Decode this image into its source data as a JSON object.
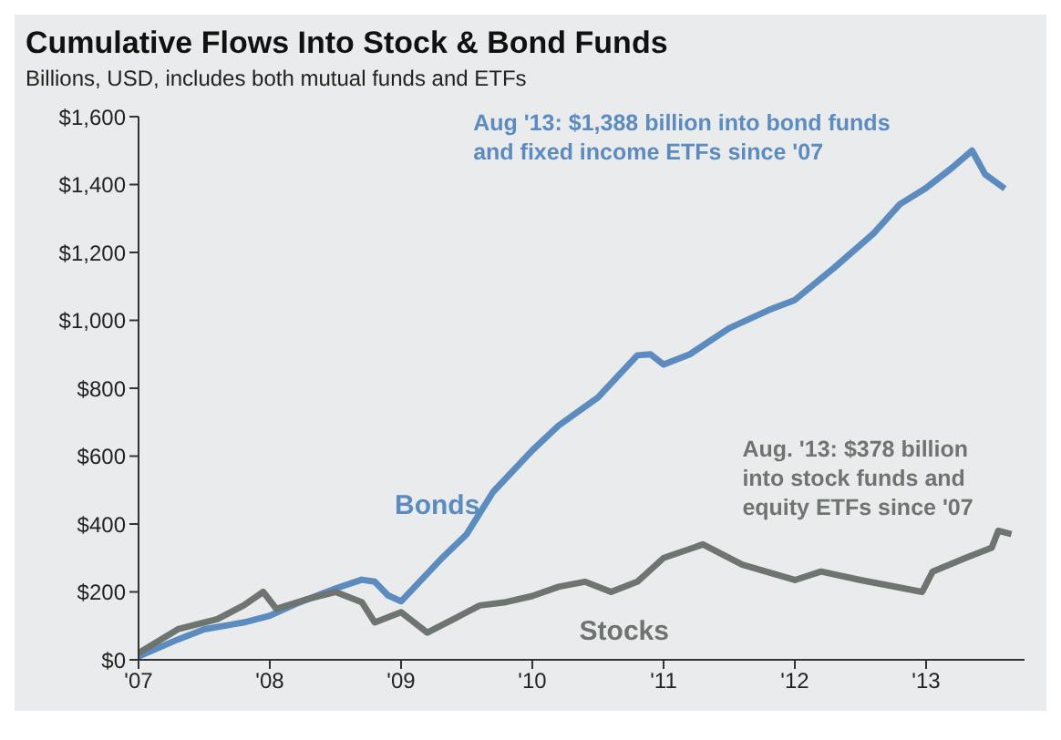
{
  "chart_data": {
    "type": "line",
    "title": "Cumulative Flows Into Stock & Bond Funds",
    "subtitle": "Billions, USD, includes both mutual funds and ETFs",
    "xlim": [
      2007,
      2013.75
    ],
    "xticks": [
      {
        "value": 2007,
        "label": "'07"
      },
      {
        "value": 2008,
        "label": "'08"
      },
      {
        "value": 2009,
        "label": "'09"
      },
      {
        "value": 2010,
        "label": "'10"
      },
      {
        "value": 2011,
        "label": "'11"
      },
      {
        "value": 2012,
        "label": "'12"
      },
      {
        "value": 2013,
        "label": "'13"
      }
    ],
    "ylim": [
      0,
      1600
    ],
    "yticks": [
      {
        "value": 0,
        "label": "$0"
      },
      {
        "value": 200,
        "label": "$200"
      },
      {
        "value": 400,
        "label": "$400"
      },
      {
        "value": 600,
        "label": "$600"
      },
      {
        "value": 800,
        "label": "$800"
      },
      {
        "value": 1000,
        "label": "$1,000"
      },
      {
        "value": 1200,
        "label": "$1,200"
      },
      {
        "value": 1400,
        "label": "$1,400"
      },
      {
        "value": 1600,
        "label": "$1,600"
      }
    ],
    "grid": false,
    "marker": "none",
    "line_style": "solid",
    "series": [
      {
        "name": "Bonds",
        "color": "#5b8bbf",
        "x": [
          2007,
          2007.3,
          2007.5,
          2007.8,
          2008,
          2008.2,
          2008.5,
          2008.7,
          2008.8,
          2008.9,
          2009,
          2009.3,
          2009.5,
          2009.7,
          2010,
          2010.2,
          2010.5,
          2010.8,
          2010.9,
          2011,
          2011.2,
          2011.5,
          2011.8,
          2012,
          2012.3,
          2012.6,
          2012.8,
          2013,
          2013.2,
          2013.35,
          2013.45,
          2013.6
        ],
        "values": [
          10,
          60,
          90,
          110,
          130,
          165,
          210,
          236,
          230,
          190,
          172,
          295,
          370,
          494,
          617,
          690,
          773,
          897,
          900,
          870,
          900,
          977,
          1030,
          1060,
          1155,
          1256,
          1342,
          1390,
          1450,
          1500,
          1430,
          1388
        ]
      },
      {
        "name": "Stocks",
        "color": "#6e7470",
        "x": [
          2007,
          2007.3,
          2007.6,
          2007.8,
          2007.95,
          2008.05,
          2008.3,
          2008.5,
          2008.7,
          2008.8,
          2009,
          2009.2,
          2009.4,
          2009.6,
          2009.8,
          2010,
          2010.2,
          2010.4,
          2010.6,
          2010.8,
          2011,
          2011.3,
          2011.6,
          2012,
          2012.2,
          2012.5,
          2012.7,
          2012.97,
          2013.05,
          2013.3,
          2013.5,
          2013.55,
          2013.65
        ],
        "values": [
          20,
          90,
          120,
          160,
          200,
          150,
          180,
          200,
          170,
          110,
          140,
          80,
          120,
          160,
          170,
          188,
          215,
          230,
          200,
          230,
          300,
          340,
          280,
          235,
          260,
          235,
          220,
          200,
          260,
          300,
          330,
          380,
          370
        ]
      }
    ],
    "annotations": [
      "Aug '13: $1,388 billion into bond funds and fixed income ETFs since '07",
      "Aug. '13: $378 billion into stock funds and equity ETFs since '07"
    ]
  }
}
